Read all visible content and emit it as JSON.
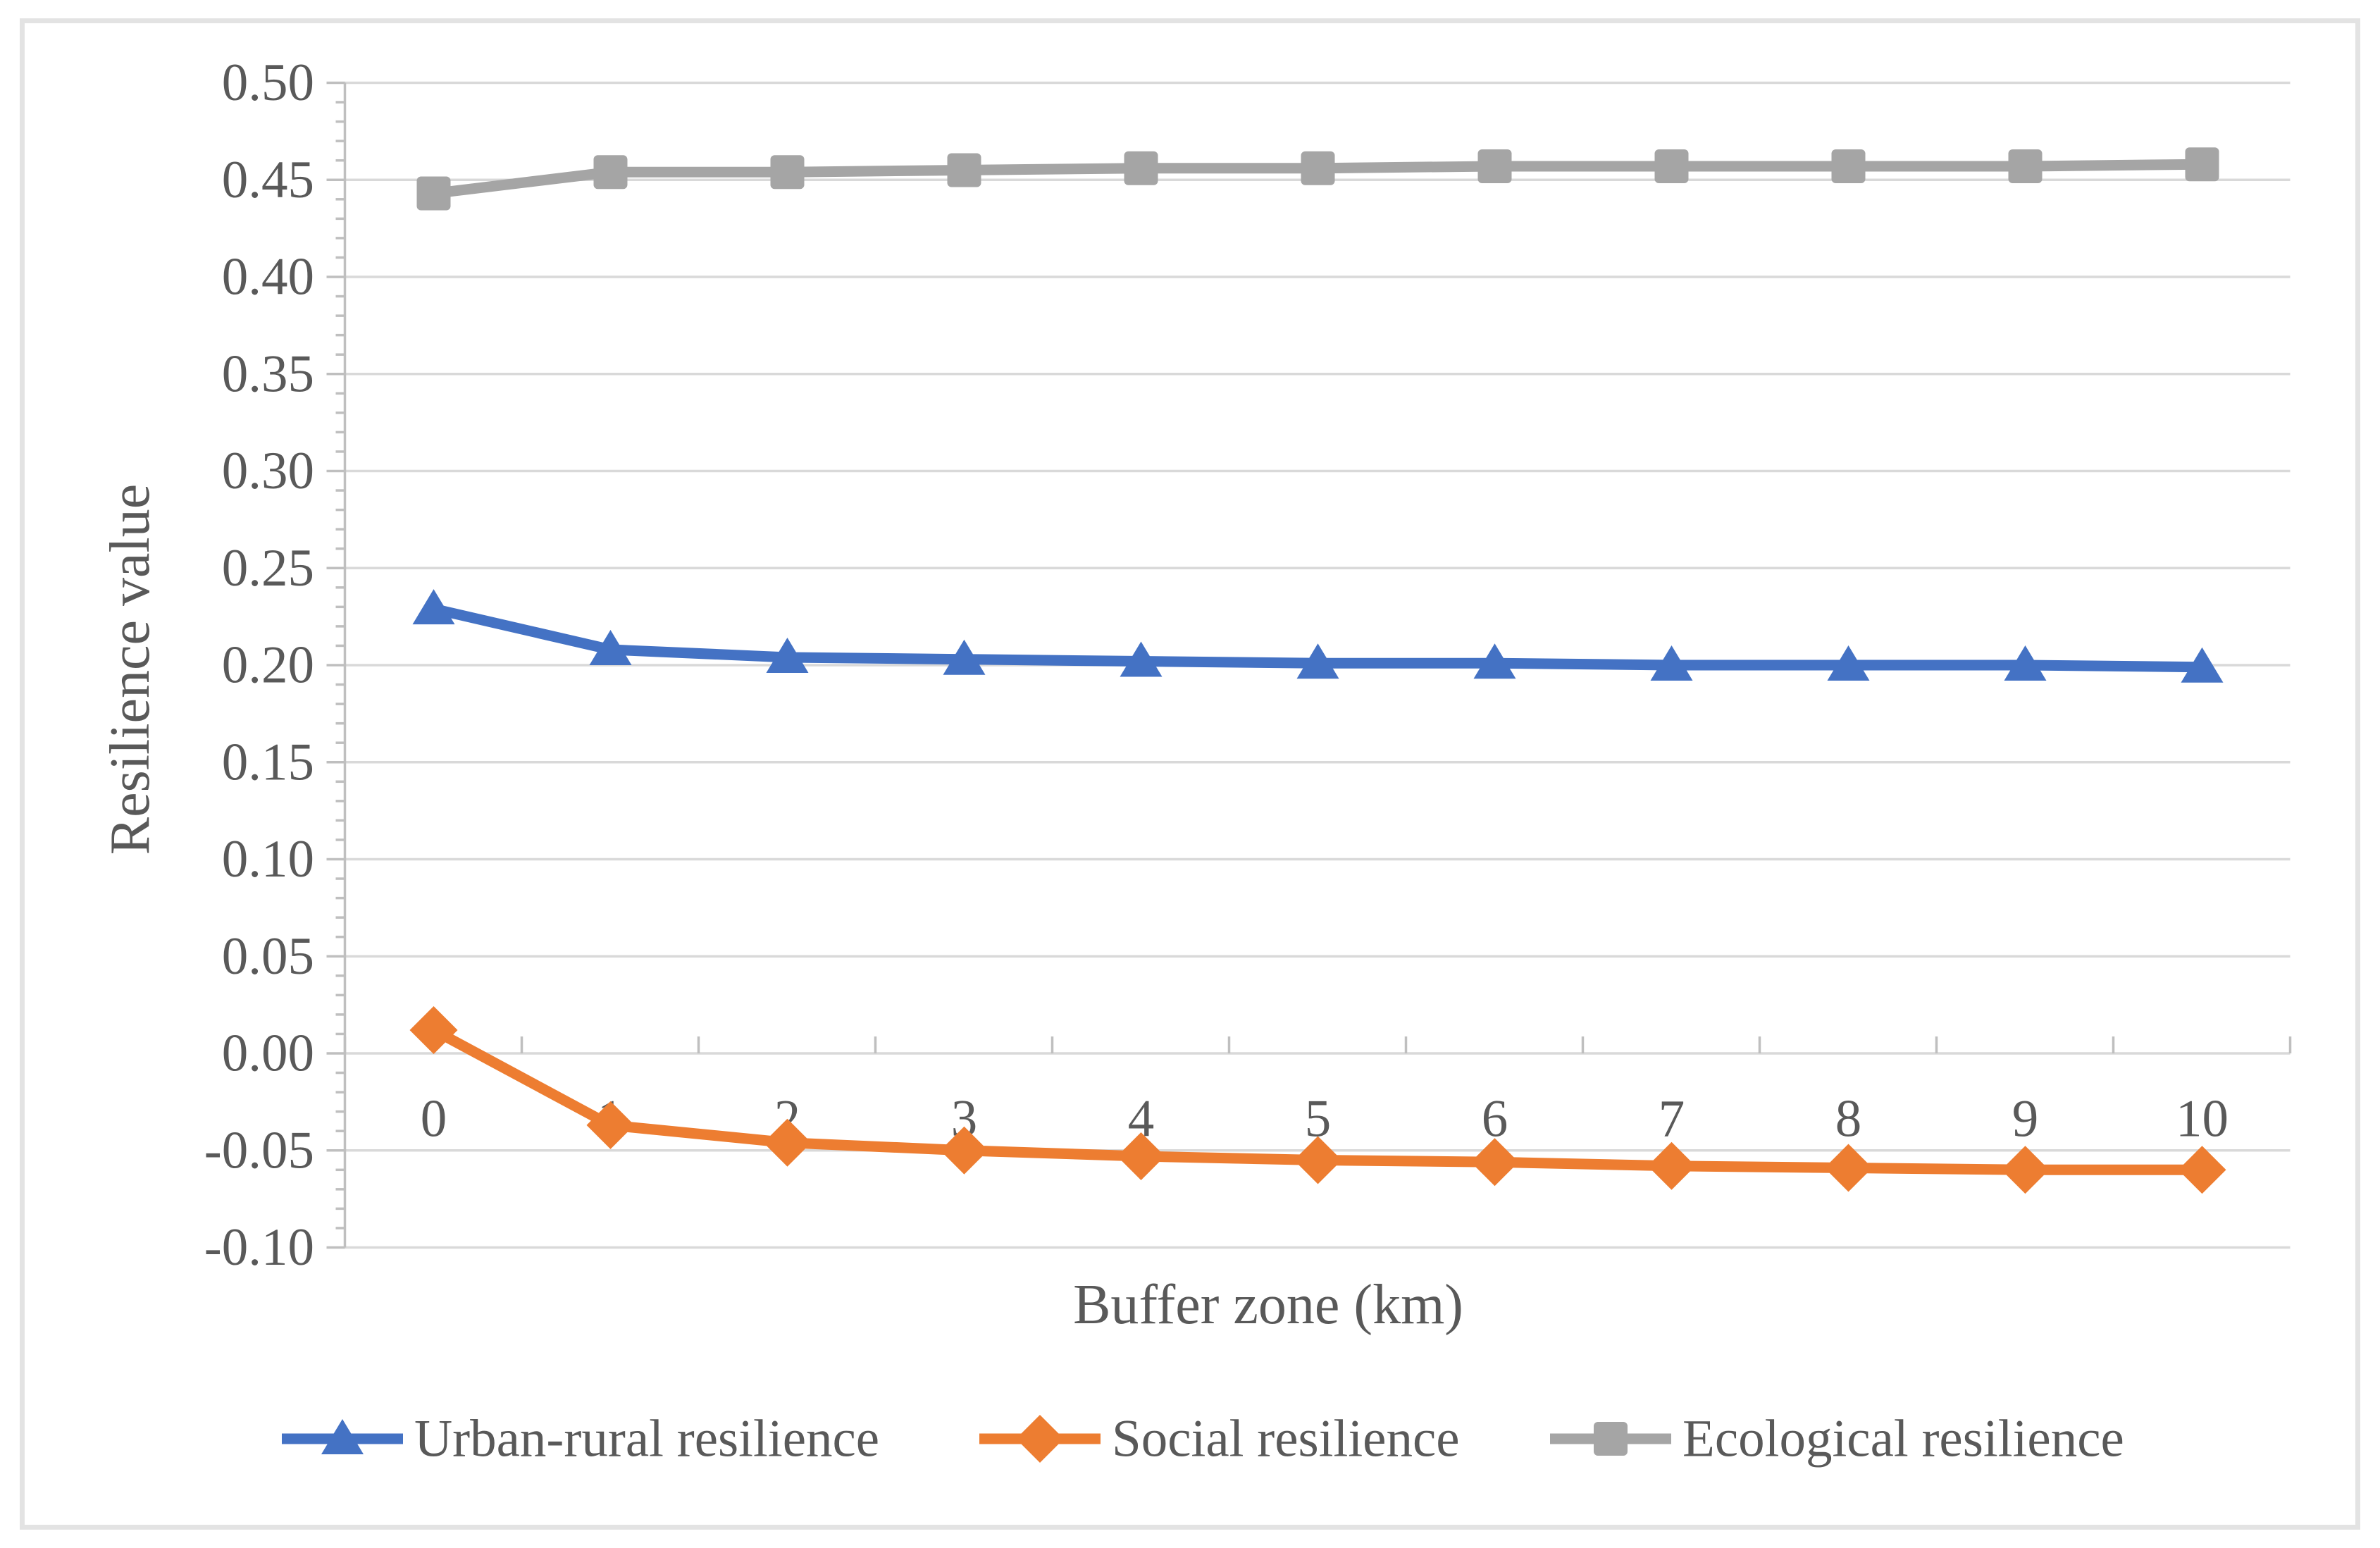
{
  "chart_data": {
    "type": "line",
    "title": "",
    "xlabel": "Buffer zone (km)",
    "ylabel": "Resilience value",
    "categories": [
      0,
      1,
      2,
      3,
      4,
      5,
      6,
      7,
      8,
      9,
      10
    ],
    "x_tick_labels": [
      "0",
      "1",
      "2",
      "3",
      "4",
      "5",
      "6",
      "7",
      "8",
      "9",
      "10"
    ],
    "y_tick_labels": [
      "0.50",
      "0.45",
      "0.40",
      "0.35",
      "0.30",
      "0.25",
      "0.20",
      "0.15",
      "0.10",
      "0.05",
      "0.00",
      "-0.05",
      "-0.10"
    ],
    "ylim": [
      -0.1,
      0.5
    ],
    "y_major_step": 0.05,
    "y_minor_step": 0.01,
    "grid": "horizontal",
    "legend_position": "bottom",
    "series": [
      {
        "name": "Urban-rural resilience",
        "color": "#4472C4",
        "marker": "triangle",
        "values": [
          0.229,
          0.208,
          0.204,
          0.203,
          0.202,
          0.201,
          0.201,
          0.2,
          0.2,
          0.2,
          0.199
        ]
      },
      {
        "name": "Social resilience",
        "color": "#ED7D31",
        "marker": "diamond",
        "values": [
          0.012,
          -0.037,
          -0.046,
          -0.05,
          -0.053,
          -0.055,
          -0.056,
          -0.058,
          -0.059,
          -0.06,
          -0.06
        ]
      },
      {
        "name": "Ecological resilience",
        "color": "#A5A5A5",
        "marker": "square",
        "values": [
          0.443,
          0.454,
          0.454,
          0.455,
          0.456,
          0.456,
          0.457,
          0.457,
          0.457,
          0.457,
          0.458
        ]
      }
    ],
    "colors": {
      "gridline": "#D9D9D9",
      "axis_line": "#BFBFBF",
      "text": "#595959",
      "background": "#FFFFFF",
      "border": "#E3E3E3"
    }
  }
}
